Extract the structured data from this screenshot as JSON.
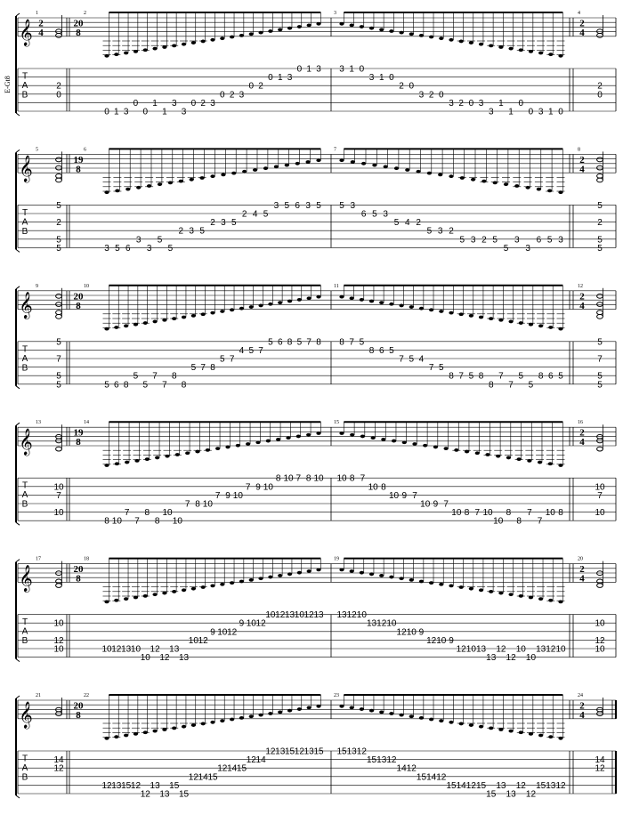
{
  "instrument_label": "E-Gt8",
  "tab_letters": [
    "T",
    "A",
    "B"
  ],
  "systems": [
    {
      "measure_numbers": [
        "1",
        "2",
        "3",
        "4"
      ],
      "ts_first": [
        "2",
        "4"
      ],
      "ts_main": [
        "20",
        "8"
      ],
      "ts_last": [
        "2",
        "4"
      ],
      "first": [
        {
          "s": 2,
          "t": "2"
        },
        {
          "s": 3,
          "t": "0"
        }
      ],
      "m2": [
        [
          5,
          "0"
        ],
        [
          5,
          "1"
        ],
        [
          5,
          "3"
        ],
        [
          4,
          "0"
        ],
        [
          5,
          "0"
        ],
        [
          4,
          "1"
        ],
        [
          5,
          "1"
        ],
        [
          4,
          "3"
        ],
        [
          5,
          "3"
        ],
        [
          4,
          "0"
        ],
        [
          4,
          "2"
        ],
        [
          4,
          "3"
        ],
        [
          3,
          "0"
        ],
        [
          3,
          "2"
        ],
        [
          3,
          "3"
        ],
        [
          2,
          "0"
        ],
        [
          2,
          "2"
        ],
        [
          1,
          "0"
        ],
        [
          1,
          "1"
        ],
        [
          1,
          "3"
        ],
        [
          0,
          "0"
        ],
        [
          0,
          "1"
        ],
        [
          0,
          "3"
        ]
      ],
      "m3": [
        [
          0,
          "3"
        ],
        [
          0,
          "1"
        ],
        [
          0,
          "0"
        ],
        [
          1,
          "3"
        ],
        [
          1,
          "1"
        ],
        [
          1,
          "0"
        ],
        [
          2,
          "2"
        ],
        [
          2,
          "0"
        ],
        [
          3,
          "3"
        ],
        [
          3,
          "2"
        ],
        [
          3,
          "0"
        ],
        [
          4,
          "3"
        ],
        [
          4,
          "2"
        ],
        [
          4,
          "0"
        ],
        [
          4,
          "3"
        ],
        [
          5,
          "3"
        ],
        [
          4,
          "1"
        ],
        [
          5,
          "1"
        ],
        [
          4,
          "0"
        ],
        [
          5,
          "0"
        ],
        [
          5,
          "3"
        ],
        [
          5,
          "1"
        ],
        [
          5,
          "0"
        ]
      ],
      "last": [
        {
          "s": 2,
          "t": "2"
        },
        {
          "s": 3,
          "t": "0"
        }
      ]
    },
    {
      "measure_numbers": [
        "5",
        "6",
        "7",
        "8"
      ],
      "ts_first": [],
      "ts_main": [
        "19",
        "8"
      ],
      "ts_last": [
        "2",
        "4"
      ],
      "first": [
        {
          "s": 0,
          "t": "5"
        },
        {
          "s": 2,
          "t": "2"
        },
        {
          "s": 4,
          "t": "5"
        },
        {
          "s": 5,
          "t": "5"
        }
      ],
      "m2": [
        [
          5,
          "3"
        ],
        [
          5,
          "5"
        ],
        [
          5,
          "6"
        ],
        [
          4,
          "3"
        ],
        [
          5,
          "3"
        ],
        [
          4,
          "5"
        ],
        [
          5,
          "5"
        ],
        [
          3,
          "2"
        ],
        [
          3,
          "3"
        ],
        [
          3,
          "5"
        ],
        [
          2,
          "2"
        ],
        [
          2,
          "3"
        ],
        [
          2,
          "5"
        ],
        [
          1,
          "2"
        ],
        [
          1,
          "4"
        ],
        [
          1,
          "5"
        ],
        [
          0,
          "3"
        ],
        [
          0,
          "5"
        ],
        [
          0,
          "6"
        ],
        [
          0,
          "3"
        ],
        [
          0,
          "5"
        ]
      ],
      "m3": [
        [
          0,
          "5"
        ],
        [
          0,
          "3"
        ],
        [
          1,
          "6"
        ],
        [
          1,
          "5"
        ],
        [
          1,
          "3"
        ],
        [
          2,
          "5"
        ],
        [
          2,
          "4"
        ],
        [
          2,
          "2"
        ],
        [
          3,
          "5"
        ],
        [
          3,
          "3"
        ],
        [
          3,
          "2"
        ],
        [
          4,
          "5"
        ],
        [
          4,
          "3"
        ],
        [
          4,
          "2"
        ],
        [
          4,
          "5"
        ],
        [
          5,
          "5"
        ],
        [
          4,
          "3"
        ],
        [
          5,
          "3"
        ],
        [
          4,
          "6"
        ],
        [
          4,
          "5"
        ],
        [
          4,
          "3"
        ]
      ],
      "last": [
        {
          "s": 0,
          "t": "5"
        },
        {
          "s": 2,
          "t": "2"
        },
        {
          "s": 4,
          "t": "5"
        },
        {
          "s": 5,
          "t": "5"
        }
      ]
    },
    {
      "measure_numbers": [
        "9",
        "10",
        "11",
        "12"
      ],
      "ts_first": [],
      "ts_main": [
        "20",
        "8"
      ],
      "ts_last": [
        "2",
        "4"
      ],
      "first": [
        {
          "s": 0,
          "t": "5"
        },
        {
          "s": 2,
          "t": "7"
        },
        {
          "s": 4,
          "t": "5"
        },
        {
          "s": 5,
          "t": "5"
        }
      ],
      "m2": [
        [
          5,
          "5"
        ],
        [
          5,
          "6"
        ],
        [
          5,
          "8"
        ],
        [
          4,
          "5"
        ],
        [
          5,
          "5"
        ],
        [
          4,
          "7"
        ],
        [
          5,
          "7"
        ],
        [
          4,
          "8"
        ],
        [
          5,
          "8"
        ],
        [
          3,
          "5"
        ],
        [
          3,
          "7"
        ],
        [
          3,
          "8"
        ],
        [
          2,
          "5"
        ],
        [
          2,
          "7"
        ],
        [
          1,
          "4"
        ],
        [
          1,
          "5"
        ],
        [
          1,
          "7"
        ],
        [
          0,
          "5"
        ],
        [
          0,
          "6"
        ],
        [
          0,
          "8"
        ],
        [
          0,
          "5"
        ],
        [
          0,
          "7"
        ],
        [
          0,
          "8"
        ]
      ],
      "m3": [
        [
          0,
          "8"
        ],
        [
          0,
          "7"
        ],
        [
          0,
          "5"
        ],
        [
          1,
          "8"
        ],
        [
          1,
          "6"
        ],
        [
          1,
          "5"
        ],
        [
          2,
          "7"
        ],
        [
          2,
          "5"
        ],
        [
          2,
          "4"
        ],
        [
          3,
          "7"
        ],
        [
          3,
          "5"
        ],
        [
          4,
          "8"
        ],
        [
          4,
          "7"
        ],
        [
          4,
          "5"
        ],
        [
          4,
          "8"
        ],
        [
          5,
          "8"
        ],
        [
          4,
          "7"
        ],
        [
          5,
          "7"
        ],
        [
          4,
          "5"
        ],
        [
          5,
          "5"
        ],
        [
          4,
          "8"
        ],
        [
          4,
          "6"
        ],
        [
          4,
          "5"
        ]
      ],
      "last": [
        {
          "s": 0,
          "t": "5"
        },
        {
          "s": 2,
          "t": "7"
        },
        {
          "s": 4,
          "t": "5"
        },
        {
          "s": 5,
          "t": "5"
        }
      ]
    },
    {
      "measure_numbers": [
        "13",
        "14",
        "15",
        "16"
      ],
      "ts_first": [],
      "ts_main": [
        "19",
        "8"
      ],
      "ts_last": [
        "2",
        "4"
      ],
      "first": [
        {
          "s": 1,
          "t": "10"
        },
        {
          "s": 2,
          "t": "7"
        },
        {
          "s": 4,
          "t": "10"
        }
      ],
      "m2": [
        [
          5,
          "8"
        ],
        [
          5,
          "10"
        ],
        [
          4,
          "7"
        ],
        [
          5,
          "7"
        ],
        [
          4,
          "8"
        ],
        [
          5,
          "8"
        ],
        [
          4,
          "10"
        ],
        [
          5,
          "10"
        ],
        [
          3,
          "7"
        ],
        [
          3,
          "8"
        ],
        [
          3,
          "10"
        ],
        [
          2,
          "7"
        ],
        [
          2,
          "9"
        ],
        [
          2,
          "10"
        ],
        [
          1,
          "7"
        ],
        [
          1,
          "9"
        ],
        [
          1,
          "10"
        ],
        [
          0,
          "8"
        ],
        [
          0,
          "10"
        ],
        [
          0,
          "7"
        ],
        [
          0,
          "8"
        ],
        [
          0,
          "10"
        ]
      ],
      "m3": [
        [
          0,
          "10"
        ],
        [
          0,
          "8"
        ],
        [
          0,
          "7"
        ],
        [
          1,
          "10"
        ],
        [
          1,
          "8"
        ],
        [
          2,
          "10"
        ],
        [
          2,
          "9"
        ],
        [
          2,
          "7"
        ],
        [
          3,
          "10"
        ],
        [
          3,
          "9"
        ],
        [
          3,
          "7"
        ],
        [
          4,
          "10"
        ],
        [
          4,
          "8"
        ],
        [
          4,
          "7"
        ],
        [
          4,
          "10"
        ],
        [
          5,
          "10"
        ],
        [
          4,
          "8"
        ],
        [
          5,
          "8"
        ],
        [
          4,
          "7"
        ],
        [
          5,
          "7"
        ],
        [
          4,
          "10"
        ],
        [
          4,
          "8"
        ]
      ],
      "last": [
        {
          "s": 1,
          "t": "10"
        },
        {
          "s": 2,
          "t": "7"
        },
        {
          "s": 4,
          "t": "10"
        }
      ]
    },
    {
      "measure_numbers": [
        "17",
        "18",
        "19",
        "20"
      ],
      "ts_first": [],
      "ts_main": [
        "20",
        "8"
      ],
      "ts_last": [
        "2",
        "4"
      ],
      "first": [
        {
          "s": 1,
          "t": "10"
        },
        {
          "s": 3,
          "t": "12"
        },
        {
          "s": 4,
          "t": "10"
        }
      ],
      "m2": [
        [
          4,
          "10"
        ],
        [
          4,
          "12"
        ],
        [
          4,
          "13"
        ],
        [
          4,
          "10"
        ],
        [
          5,
          "10"
        ],
        [
          4,
          "12"
        ],
        [
          5,
          "12"
        ],
        [
          4,
          "13"
        ],
        [
          5,
          "13"
        ],
        [
          3,
          "10"
        ],
        [
          3,
          "12"
        ],
        [
          2,
          "9"
        ],
        [
          2,
          "10"
        ],
        [
          2,
          "12"
        ],
        [
          1,
          "9"
        ],
        [
          1,
          "10"
        ],
        [
          1,
          "12"
        ],
        [
          0,
          "10"
        ],
        [
          0,
          "12"
        ],
        [
          0,
          "13"
        ],
        [
          0,
          "10"
        ],
        [
          0,
          "12"
        ],
        [
          0,
          "13"
        ]
      ],
      "m3": [
        [
          0,
          "13"
        ],
        [
          0,
          "12"
        ],
        [
          0,
          "10"
        ],
        [
          1,
          "13"
        ],
        [
          1,
          "12"
        ],
        [
          1,
          "10"
        ],
        [
          2,
          "12"
        ],
        [
          2,
          "10"
        ],
        [
          2,
          "9"
        ],
        [
          3,
          "12"
        ],
        [
          3,
          "10"
        ],
        [
          3,
          "9"
        ],
        [
          4,
          "12"
        ],
        [
          4,
          "10"
        ],
        [
          4,
          "13"
        ],
        [
          5,
          "13"
        ],
        [
          4,
          "12"
        ],
        [
          5,
          "12"
        ],
        [
          4,
          "10"
        ],
        [
          5,
          "10"
        ],
        [
          4,
          "13"
        ],
        [
          4,
          "12"
        ],
        [
          4,
          "10"
        ]
      ],
      "last": [
        {
          "s": 1,
          "t": "10"
        },
        {
          "s": 3,
          "t": "12"
        },
        {
          "s": 4,
          "t": "10"
        }
      ]
    },
    {
      "measure_numbers": [
        "21",
        "22",
        "23",
        "24"
      ],
      "ts_first": [],
      "ts_main": [
        "20",
        "8"
      ],
      "ts_last": [
        "2",
        "4"
      ],
      "first": [
        {
          "s": 1,
          "t": "14"
        },
        {
          "s": 2,
          "t": "12"
        }
      ],
      "m2": [
        [
          4,
          "12"
        ],
        [
          4,
          "13"
        ],
        [
          4,
          "15"
        ],
        [
          4,
          "12"
        ],
        [
          5,
          "12"
        ],
        [
          4,
          "13"
        ],
        [
          5,
          "13"
        ],
        [
          4,
          "15"
        ],
        [
          5,
          "15"
        ],
        [
          3,
          "12"
        ],
        [
          3,
          "14"
        ],
        [
          3,
          "15"
        ],
        [
          2,
          "12"
        ],
        [
          2,
          "14"
        ],
        [
          2,
          "15"
        ],
        [
          1,
          "12"
        ],
        [
          1,
          "14"
        ],
        [
          0,
          "12"
        ],
        [
          0,
          "13"
        ],
        [
          0,
          "15"
        ],
        [
          0,
          "12"
        ],
        [
          0,
          "13"
        ],
        [
          0,
          "15"
        ]
      ],
      "m3": [
        [
          0,
          "15"
        ],
        [
          0,
          "13"
        ],
        [
          0,
          "12"
        ],
        [
          1,
          "15"
        ],
        [
          1,
          "13"
        ],
        [
          1,
          "12"
        ],
        [
          2,
          "14"
        ],
        [
          2,
          "12"
        ],
        [
          3,
          "15"
        ],
        [
          3,
          "14"
        ],
        [
          3,
          "12"
        ],
        [
          4,
          "15"
        ],
        [
          4,
          "14"
        ],
        [
          4,
          "12"
        ],
        [
          4,
          "15"
        ],
        [
          5,
          "15"
        ],
        [
          4,
          "13"
        ],
        [
          5,
          "13"
        ],
        [
          4,
          "12"
        ],
        [
          5,
          "12"
        ],
        [
          4,
          "15"
        ],
        [
          4,
          "13"
        ],
        [
          4,
          "12"
        ]
      ],
      "last": [
        {
          "s": 1,
          "t": "14"
        },
        {
          "s": 2,
          "t": "12"
        }
      ]
    }
  ]
}
